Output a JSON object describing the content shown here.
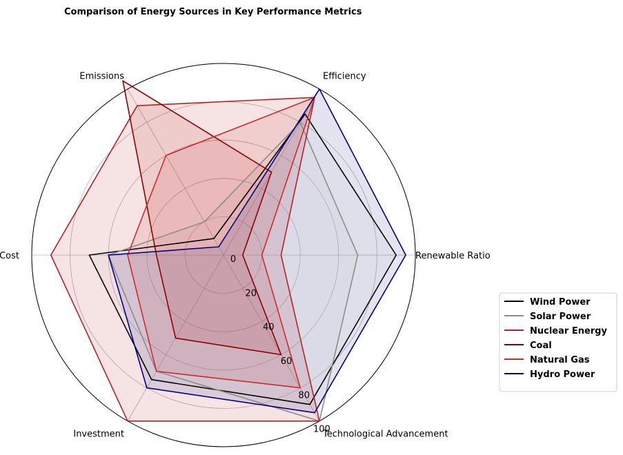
{
  "chart_data": {
    "type": "radar",
    "title": "Comparison of Energy Sources in Key Performance Metrics",
    "categories": [
      "Renewable Ratio",
      "Efficiency",
      "Emissions",
      "Cost",
      "Investment",
      "Technological Advancement"
    ],
    "rlim": [
      0,
      100
    ],
    "rticks": [
      0,
      20,
      40,
      60,
      80,
      100
    ],
    "grid": true,
    "legend_position": "center-right",
    "series": [
      {
        "name": "Wind Power",
        "color": "#000000",
        "fill": "#dddddd",
        "fill_opacity": 0.15,
        "values": [
          90,
          85,
          10,
          70,
          75,
          90
        ]
      },
      {
        "name": "Solar Power",
        "color": "#8c8c8c",
        "fill": "#dddddd",
        "fill_opacity": 0.15,
        "values": [
          70,
          80,
          20,
          60,
          70,
          100
        ]
      },
      {
        "name": "Nuclear Energy",
        "color": "#b22222",
        "fill": "#b22222",
        "fill_opacity": 0.12,
        "values": [
          30,
          95,
          90,
          90,
          100,
          100
        ]
      },
      {
        "name": "Coal",
        "color": "#8b0000",
        "fill": "#b22222",
        "fill_opacity": 0.12,
        "values": [
          10,
          50,
          105,
          35,
          50,
          60
        ]
      },
      {
        "name": "Natural Gas",
        "color": "#cc2b2b",
        "fill": "#cc3333",
        "fill_opacity": 0.12,
        "values": [
          20,
          95,
          60,
          50,
          70,
          80
        ]
      },
      {
        "name": "Hydro Power",
        "color": "#000080",
        "fill": "#1f1f8f",
        "fill_opacity": 0.12,
        "values": [
          95,
          100,
          5,
          60,
          80,
          95
        ]
      }
    ]
  }
}
